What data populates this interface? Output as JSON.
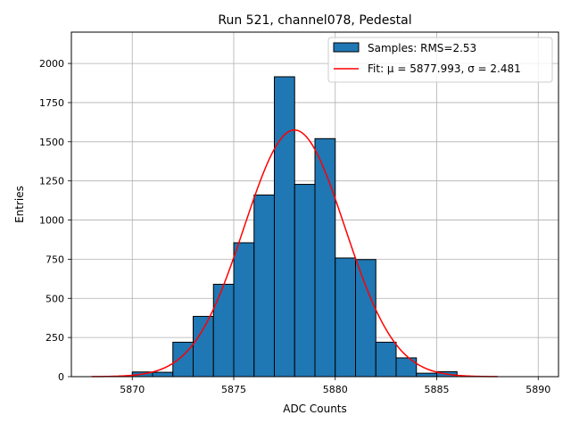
{
  "chart_data": {
    "type": "bar",
    "title": "Run 521, channel078, Pedestal",
    "xlabel": "ADC Counts",
    "ylabel": "Entries",
    "xlim": [
      5867,
      5891
    ],
    "ylim": [
      0,
      2200
    ],
    "xticks": [
      5870,
      5875,
      5880,
      5885,
      5890
    ],
    "yticks": [
      0,
      250,
      500,
      750,
      1000,
      1250,
      1500,
      1750,
      2000
    ],
    "grid": true,
    "legend_position": "upper-right",
    "histogram": {
      "name": "Samples: RMS=2.53",
      "color": "#1f77b4",
      "bin_edges": [
        5870,
        5871,
        5872,
        5873,
        5874,
        5875,
        5876,
        5877,
        5878,
        5879,
        5880,
        5881,
        5882,
        5883,
        5884,
        5885,
        5886
      ],
      "values": [
        30,
        28,
        220,
        385,
        590,
        855,
        1160,
        1915,
        1228,
        1520,
        758,
        748,
        220,
        120,
        22,
        32
      ]
    },
    "fit": {
      "name": "Fit: μ = 5877.993, σ = 2.481",
      "color": "#ff0000",
      "mu": 5877.993,
      "sigma": 2.481,
      "amplitude": 1575,
      "x_range": [
        5868,
        5888
      ]
    }
  }
}
